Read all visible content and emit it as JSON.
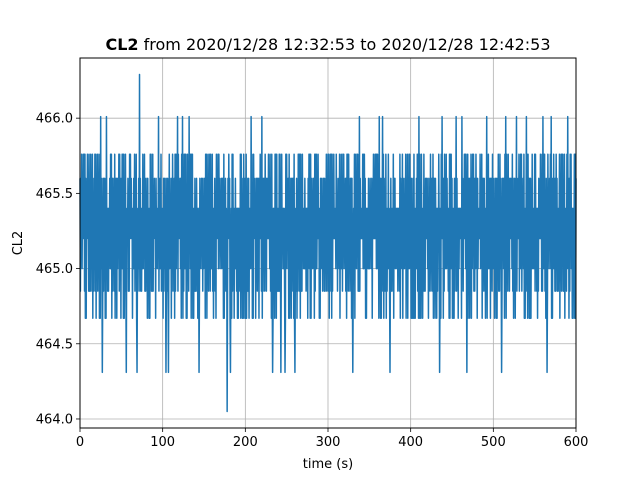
{
  "chart_data": {
    "type": "line",
    "title": {
      "bold": "CL2",
      "rest": " from 2020/12/28 12:32:53 to 2020/12/28 12:42:53"
    },
    "xlabel": "time (s)",
    "ylabel": "CL2",
    "xlim": [
      0,
      600
    ],
    "ylim": [
      463.94,
      466.4
    ],
    "x_ticks": [
      0,
      100,
      200,
      300,
      400,
      500,
      600
    ],
    "x_tick_labels": [
      "0",
      "100",
      "200",
      "300",
      "400",
      "500",
      "600"
    ],
    "y_ticks": [
      464.0,
      464.5,
      465.0,
      465.5,
      466.0
    ],
    "y_tick_labels": [
      "464.0",
      "464.5",
      "465.0",
      "465.5",
      "466.0"
    ],
    "grid": true,
    "legend": "none",
    "series": [
      {
        "color": "#1f77b4",
        "x_range": [
          0,
          600
        ],
        "typical_band": [
          464.67,
          465.76
        ],
        "spikes": [
          {
            "x": 25,
            "y": 466.01
          },
          {
            "x": 32,
            "y": 466.01
          },
          {
            "x": 72,
            "y": 466.29
          },
          {
            "x": 95,
            "y": 466.01
          },
          {
            "x": 118,
            "y": 466.01
          },
          {
            "x": 124,
            "y": 466.01
          },
          {
            "x": 132,
            "y": 466.01
          },
          {
            "x": 207,
            "y": 466.01
          },
          {
            "x": 220,
            "y": 466.01
          },
          {
            "x": 338,
            "y": 466.01
          },
          {
            "x": 362,
            "y": 466.01
          },
          {
            "x": 366,
            "y": 466.01
          },
          {
            "x": 410,
            "y": 466.01
          },
          {
            "x": 438,
            "y": 466.01
          },
          {
            "x": 455,
            "y": 466.01
          },
          {
            "x": 462,
            "y": 466.01
          },
          {
            "x": 492,
            "y": 466.01
          },
          {
            "x": 515,
            "y": 466.01
          },
          {
            "x": 528,
            "y": 466.01
          },
          {
            "x": 540,
            "y": 466.01
          },
          {
            "x": 560,
            "y": 466.01
          },
          {
            "x": 570,
            "y": 466.01
          },
          {
            "x": 590,
            "y": 466.01
          },
          {
            "x": 27,
            "y": 464.31
          },
          {
            "x": 56,
            "y": 464.31
          },
          {
            "x": 69,
            "y": 464.31
          },
          {
            "x": 104,
            "y": 464.31
          },
          {
            "x": 107,
            "y": 464.31
          },
          {
            "x": 144,
            "y": 464.31
          },
          {
            "x": 178,
            "y": 464.05
          },
          {
            "x": 182,
            "y": 464.31
          },
          {
            "x": 233,
            "y": 464.31
          },
          {
            "x": 243,
            "y": 464.31
          },
          {
            "x": 248,
            "y": 464.31
          },
          {
            "x": 260,
            "y": 464.31
          },
          {
            "x": 330,
            "y": 464.31
          },
          {
            "x": 375,
            "y": 464.31
          },
          {
            "x": 435,
            "y": 464.31
          },
          {
            "x": 468,
            "y": 464.31
          },
          {
            "x": 510,
            "y": 464.31
          },
          {
            "x": 565,
            "y": 464.31
          }
        ]
      }
    ]
  }
}
